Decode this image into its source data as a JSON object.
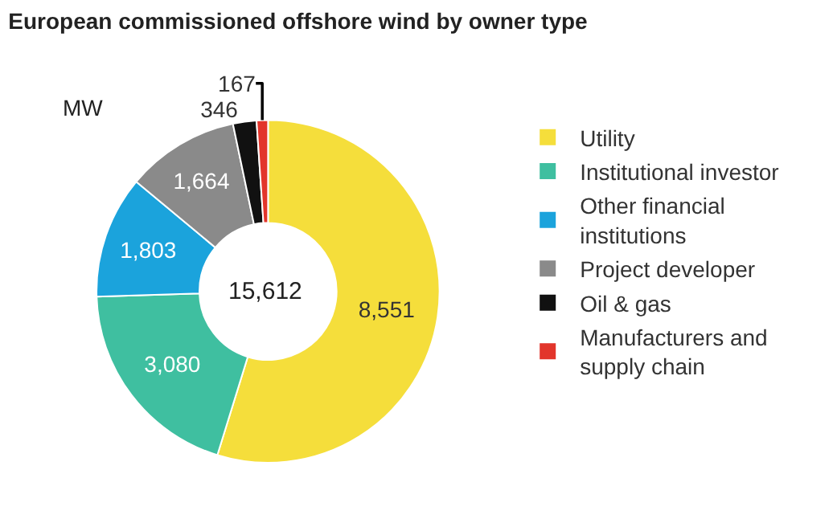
{
  "chart_data": {
    "type": "donut",
    "title": "European commissioned offshore wind by owner type",
    "categories": [
      "Utility",
      "Institutional investor",
      "Other financial institutions",
      "Project developer",
      "Oil & gas",
      "Manufacturers and supply chain"
    ],
    "values": [
      8551,
      3080,
      1803,
      1664,
      346,
      167
    ],
    "colors": [
      "#f5de3b",
      "#3fbfa0",
      "#1ba3dc",
      "#8a8a8a",
      "#111111",
      "#e2352b"
    ],
    "value_labels": [
      "8,551",
      "3,080",
      "1,803",
      "1,664",
      "346",
      "167"
    ],
    "legend": "right",
    "annotations": [
      "MW",
      "15,612"
    ]
  }
}
